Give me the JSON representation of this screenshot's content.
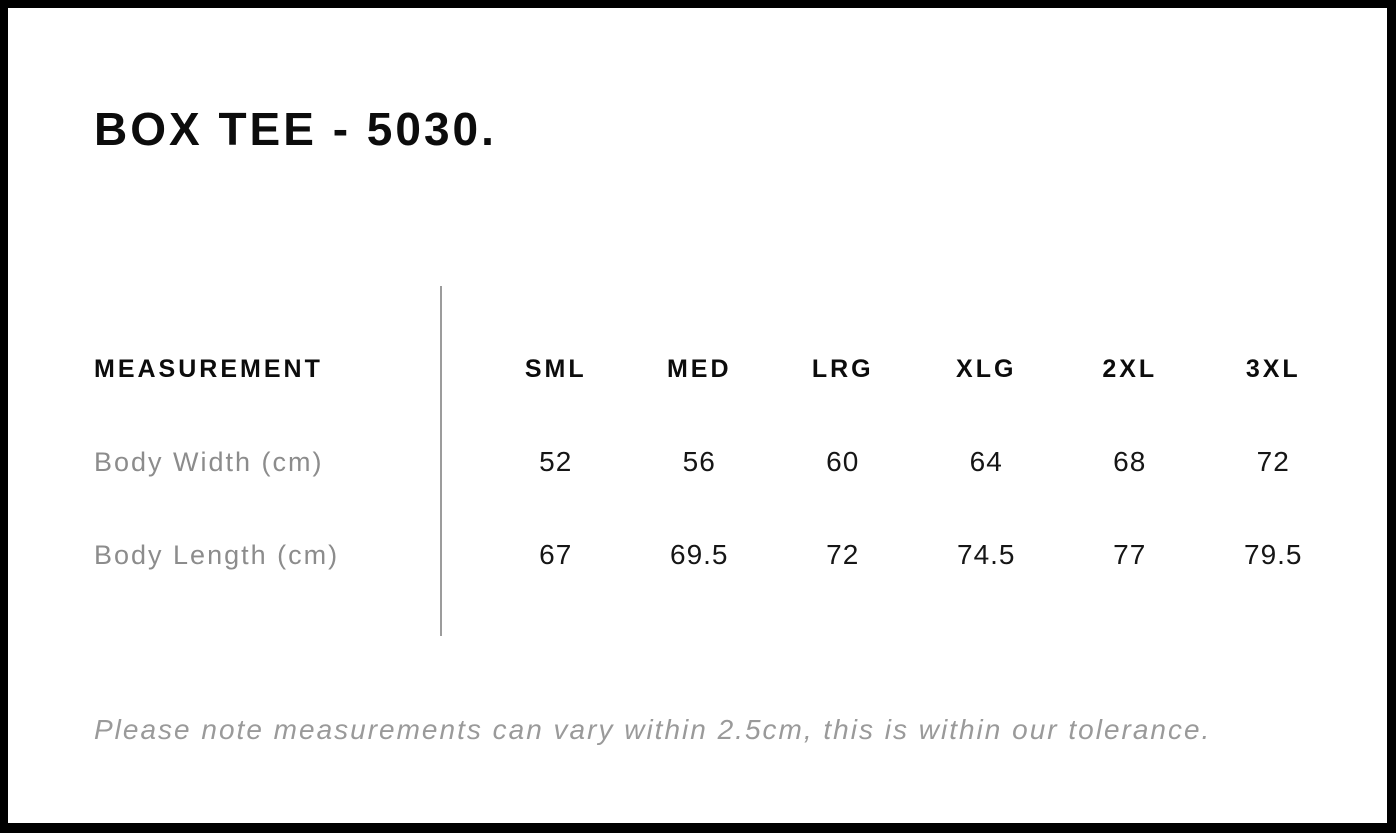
{
  "page": {
    "title": "BOX TEE - 5030."
  },
  "table": {
    "measurement_header": "MEASUREMENT",
    "size_headers": [
      "SML",
      "MED",
      "LRG",
      "XLG",
      "2XL",
      "3XL"
    ],
    "rows": [
      {
        "label": "Body Width (cm)",
        "values": [
          "52",
          "56",
          "60",
          "64",
          "68",
          "72"
        ]
      },
      {
        "label": "Body Length (cm)",
        "values": [
          "67",
          "69.5",
          "72",
          "74.5",
          "77",
          "79.5"
        ]
      }
    ]
  },
  "footer": {
    "note": "Please note measurements can vary within 2.5cm, this is within our tolerance."
  },
  "colors": {
    "frame_border": "#000000",
    "heading_text": "#0c0c0c",
    "row_label_text": "#8c8c8c",
    "value_text": "#161616",
    "note_text": "#9a9a9a",
    "divider": "#9c9c9c",
    "background": "#ffffff"
  }
}
